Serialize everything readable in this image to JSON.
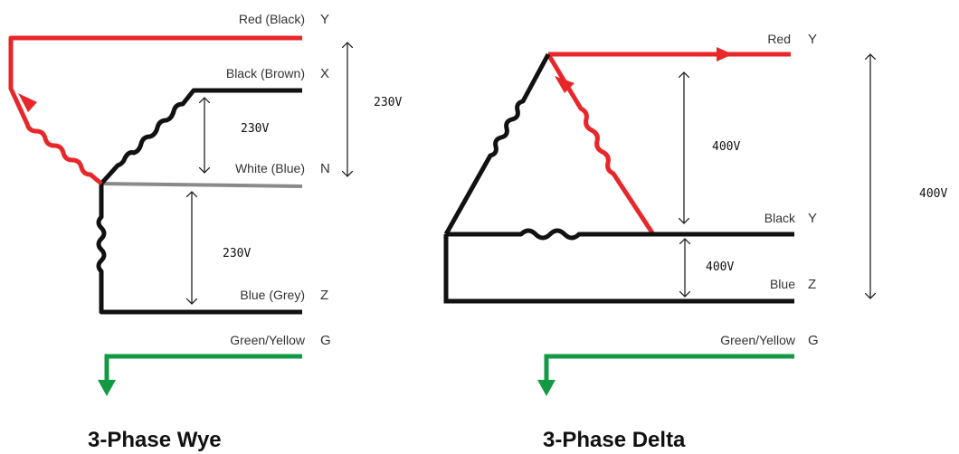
{
  "colors": {
    "red": "#e8272a",
    "black": "#111111",
    "grey": "#8a8a8a",
    "green": "#119944",
    "arrow": "#222222"
  },
  "wye": {
    "title": "3-Phase Wye",
    "wires": [
      {
        "label": "Red (Black)",
        "tag": "Y"
      },
      {
        "label": "Black (Brown)",
        "tag": "X"
      },
      {
        "label": "White (Blue)",
        "tag": "N"
      },
      {
        "label": "Blue (Grey)",
        "tag": "Z"
      },
      {
        "label": "Green/Yellow",
        "tag": "G"
      }
    ],
    "voltages": {
      "phase_to_phase": "230V",
      "x_to_n": "230V",
      "n_to_z": "230V"
    }
  },
  "delta": {
    "title": "3-Phase Delta",
    "wires": [
      {
        "label": "Red",
        "tag": "Y"
      },
      {
        "label": "Black",
        "tag": "Y"
      },
      {
        "label": "Blue",
        "tag": "Z"
      },
      {
        "label": "Green/Yellow",
        "tag": "G"
      }
    ],
    "voltages": {
      "red_to_black": "400V",
      "black_to_blue": "400V",
      "red_to_blue": "400V"
    }
  }
}
